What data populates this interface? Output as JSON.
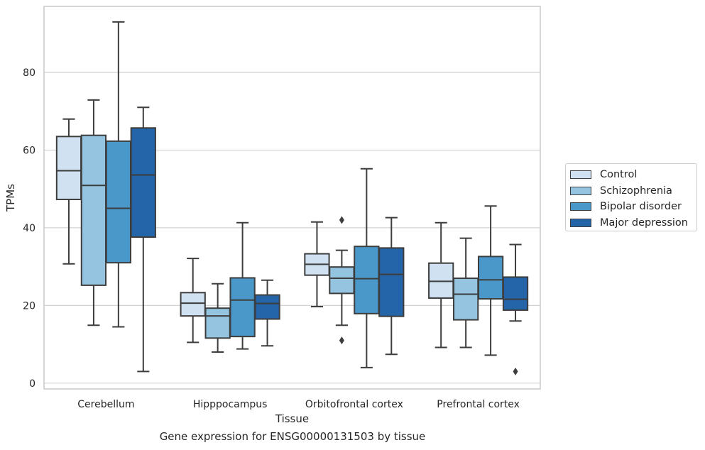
{
  "chart_data": {
    "type": "box",
    "title": "",
    "caption": "Gene expression for ENSG00000131503 by tissue",
    "xlabel": "Tissue",
    "ylabel": "TPMs",
    "ylim": [
      -1.5,
      97
    ],
    "yticks": [
      0,
      20,
      40,
      60,
      80
    ],
    "grid": "horizontal",
    "legend_position": "right",
    "categories": [
      "Cerebellum",
      "Hipppocampus",
      "Orbitofrontal cortex",
      "Prefrontal cortex"
    ],
    "series": [
      {
        "name": "Control",
        "color": "#d0e1f2",
        "boxes": [
          {
            "whisker_low": 30.7,
            "q1": 47.3,
            "median": 54.7,
            "q3": 63.5,
            "whisker_high": 68.0,
            "outliers": []
          },
          {
            "whisker_low": 10.5,
            "q1": 17.3,
            "median": 20.6,
            "q3": 23.3,
            "whisker_high": 32.1,
            "outliers": []
          },
          {
            "whisker_low": 19.7,
            "q1": 27.8,
            "median": 30.6,
            "q3": 33.3,
            "whisker_high": 41.5,
            "outliers": []
          },
          {
            "whisker_low": 9.2,
            "q1": 21.9,
            "median": 26.2,
            "q3": 30.9,
            "whisker_high": 41.3,
            "outliers": []
          }
        ]
      },
      {
        "name": "Schizophrenia",
        "color": "#94c4df",
        "boxes": [
          {
            "whisker_low": 14.9,
            "q1": 25.2,
            "median": 50.9,
            "q3": 63.8,
            "whisker_high": 72.9,
            "outliers": []
          },
          {
            "whisker_low": 8.0,
            "q1": 11.6,
            "median": 17.3,
            "q3": 19.3,
            "whisker_high": 25.6,
            "outliers": []
          },
          {
            "whisker_low": 14.9,
            "q1": 23.1,
            "median": 27.0,
            "q3": 29.9,
            "whisker_high": 34.2,
            "outliers": [
              42.0,
              11.0
            ]
          },
          {
            "whisker_low": 9.2,
            "q1": 16.3,
            "median": 22.9,
            "q3": 27.0,
            "whisker_high": 37.3,
            "outliers": []
          }
        ]
      },
      {
        "name": "Bipolar disorder",
        "color": "#4a98c9",
        "boxes": [
          {
            "whisker_low": 14.5,
            "q1": 31.0,
            "median": 45.0,
            "q3": 62.3,
            "whisker_high": 93.0,
            "outliers": []
          },
          {
            "whisker_low": 8.8,
            "q1": 12.0,
            "median": 21.4,
            "q3": 27.1,
            "whisker_high": 41.3,
            "outliers": []
          },
          {
            "whisker_low": 4.0,
            "q1": 17.9,
            "median": 26.9,
            "q3": 35.2,
            "whisker_high": 55.2,
            "outliers": []
          },
          {
            "whisker_low": 7.2,
            "q1": 21.7,
            "median": 26.6,
            "q3": 32.6,
            "whisker_high": 45.6,
            "outliers": []
          }
        ]
      },
      {
        "name": "Major depression",
        "color": "#2464a9",
        "boxes": [
          {
            "whisker_low": 3.0,
            "q1": 37.6,
            "median": 53.6,
            "q3": 65.7,
            "whisker_high": 71.0,
            "outliers": []
          },
          {
            "whisker_low": 9.6,
            "q1": 16.5,
            "median": 20.5,
            "q3": 22.7,
            "whisker_high": 26.5,
            "outliers": []
          },
          {
            "whisker_low": 7.4,
            "q1": 17.2,
            "median": 28.0,
            "q3": 34.8,
            "whisker_high": 42.6,
            "outliers": []
          },
          {
            "whisker_low": 16.0,
            "q1": 18.8,
            "median": 21.6,
            "q3": 27.3,
            "whisker_high": 35.7,
            "outliers": [
              3.0
            ]
          }
        ]
      }
    ]
  }
}
